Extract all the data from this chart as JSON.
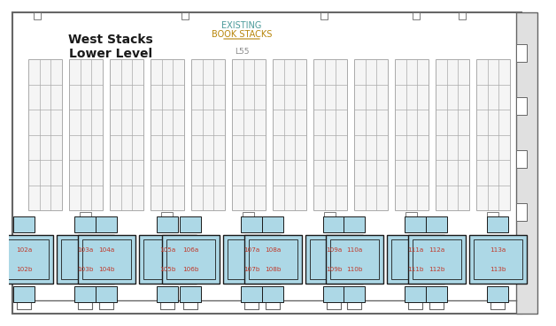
{
  "bg_color": "#ffffff",
  "title": "West Stacks\nLower Level",
  "existing_line1": "EXISTING",
  "existing_line2": "BOOK STACKS",
  "l55": "L55",
  "table_fill": "#add8e6",
  "table_edge": "#1a1a1a",
  "label_color": "#c0392b",
  "shelf_fill": "#f5f5f5",
  "shelf_edge": "#aaaaaa",
  "wall_edge": "#666666",
  "desk_groups": [
    {
      "labels_top": [
        "102a",
        "103a"
      ],
      "labels_bot": [
        "102b",
        "103b"
      ]
    },
    {
      "labels_top": [
        "104a",
        "105a"
      ],
      "labels_bot": [
        "104b",
        "105b"
      ]
    },
    {
      "labels_top": [
        "106a",
        "107a"
      ],
      "labels_bot": [
        "106b",
        "107b"
      ]
    },
    {
      "labels_top": [
        "108a",
        "109a"
      ],
      "labels_bot": [
        "108b",
        "109b"
      ]
    },
    {
      "labels_top": [
        "110a",
        "111a"
      ],
      "labels_bot": [
        "110b",
        "111b"
      ]
    },
    {
      "labels_top": [
        "112a",
        "113a"
      ],
      "labels_bot": [
        "112b",
        "113b"
      ]
    }
  ]
}
